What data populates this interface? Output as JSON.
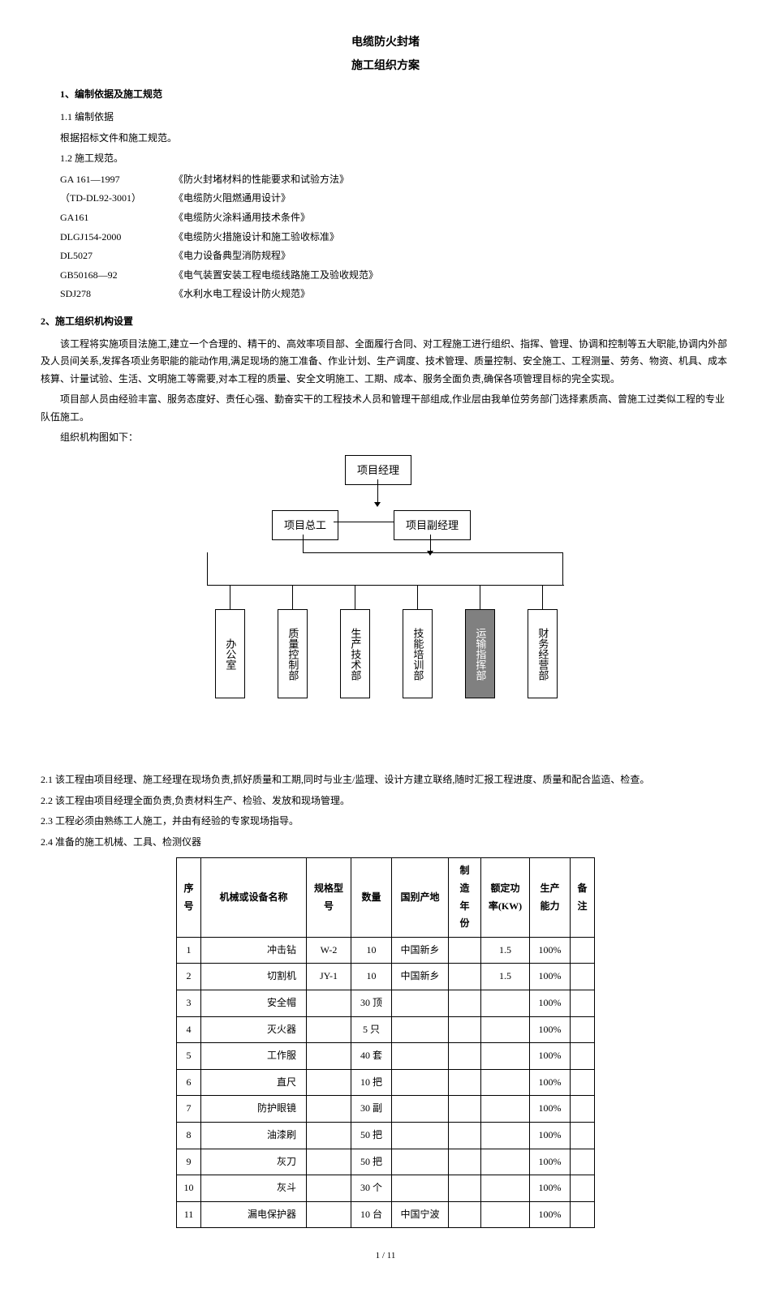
{
  "title_main": "电缆防火封堵",
  "title_sub": "施工组织方案",
  "section1_heading": "1、编制依据及施工规范",
  "section1_1": "1.1 编制依据",
  "section1_1_text": "根据招标文件和施工规范。",
  "section1_2": "1.2 施工规范。",
  "specs": [
    {
      "code": "GA 161—1997",
      "name": "《防火封堵材料的性能要求和试验方法》"
    },
    {
      "code": "（TD-DL92-3001）",
      "name": "《电缆防火阻燃通用设计》"
    },
    {
      "code": "GA161",
      "name": "《电缆防火涂料通用技术条件》"
    },
    {
      "code": "DLGJ154-2000",
      "name": "《电缆防火措施设计和施工验收标准》"
    },
    {
      "code": "DL5027",
      "name": "《电力设备典型消防规程》"
    },
    {
      "code": "GB50168—92",
      "name": "《电气装置安装工程电缆线路施工及验收规范》"
    },
    {
      "code": "SDJ278",
      "name": "《水利水电工程设计防火规范》"
    }
  ],
  "section2_heading": "2、施工组织机构设置",
  "section2_p1": "该工程将实施项目法施工,建立一个合理的、精干的、高效率项目部、全面履行合同、对工程施工进行组织、指挥、管理、协调和控制等五大职能,协调内外部及人员间关系,发挥各项业务职能的能动作用,满足现场的施工准备、作业计划、生产调度、技术管理、质量控制、安全施工、工程测量、劳务、物资、机具、成本核算、计量试验、生活、文明施工等需要,对本工程的质量、安全文明施工、工期、成本、服务全面负责,确保各项管理目标的完全实现。",
  "section2_p2": "项目部人员由经验丰富、服务态度好、责任心强、勤奋实干的工程技术人员和管理干部组成,作业层由我单位劳务部门选择素质高、曾施工过类似工程的专业队伍施工。",
  "section2_p3": "组织机构图如下：",
  "org": {
    "top": "项目经理",
    "l2_left": "项目总工",
    "l2_right": "项目副经理",
    "l3": [
      "办公室",
      "质量控制部",
      "生产技术部",
      "技能培训部",
      "运输指挥部",
      "财务经营部"
    ]
  },
  "section2_1": "2.1 该工程由项目经理、施工经理在现场负责,抓好质量和工期,同时与业主/监理、设计方建立联络,随时汇报工程进度、质量和配合监造、检查。",
  "section2_2": "2.2 该工程由项目经理全面负责,负责材料生产、检验、发放和现场管理。",
  "section2_3": "2.3 工程必须由熟练工人施工，并由有经验的专家现场指导。",
  "section2_4": "2.4 准备的施工机械、工具、检测仪器",
  "table": {
    "headers": {
      "seq": "序号",
      "name": "机械或设备名称",
      "spec": "规格型号",
      "qty": "数量",
      "origin": "国别产地",
      "year": "制造年份",
      "power": "额定功率(KW)",
      "cap": "生产能力",
      "note": "备注"
    },
    "rows": [
      {
        "seq": "1",
        "name": "冲击钻",
        "spec": "W-2",
        "qty": "10",
        "origin": "中国新乡",
        "year": "",
        "power": "1.5",
        "cap": "100%",
        "note": ""
      },
      {
        "seq": "2",
        "name": "切割机",
        "spec": "JY-1",
        "qty": "10",
        "origin": "中国新乡",
        "year": "",
        "power": "1.5",
        "cap": "100%",
        "note": ""
      },
      {
        "seq": "3",
        "name": "安全帽",
        "spec": "",
        "qty": "30 顶",
        "origin": "",
        "year": "",
        "power": "",
        "cap": "100%",
        "note": ""
      },
      {
        "seq": "4",
        "name": "灭火器",
        "spec": "",
        "qty": "5 只",
        "origin": "",
        "year": "",
        "power": "",
        "cap": "100%",
        "note": ""
      },
      {
        "seq": "5",
        "name": "工作服",
        "spec": "",
        "qty": "40 套",
        "origin": "",
        "year": "",
        "power": "",
        "cap": "100%",
        "note": ""
      },
      {
        "seq": "6",
        "name": "直尺",
        "spec": "",
        "qty": "10 把",
        "origin": "",
        "year": "",
        "power": "",
        "cap": "100%",
        "note": ""
      },
      {
        "seq": "7",
        "name": "防护眼镜",
        "spec": "",
        "qty": "30 副",
        "origin": "",
        "year": "",
        "power": "",
        "cap": "100%",
        "note": ""
      },
      {
        "seq": "8",
        "name": "油漆刷",
        "spec": "",
        "qty": "50 把",
        "origin": "",
        "year": "",
        "power": "",
        "cap": "100%",
        "note": ""
      },
      {
        "seq": "9",
        "name": "灰刀",
        "spec": "",
        "qty": "50 把",
        "origin": "",
        "year": "",
        "power": "",
        "cap": "100%",
        "note": ""
      },
      {
        "seq": "10",
        "name": "灰斗",
        "spec": "",
        "qty": "30 个",
        "origin": "",
        "year": "",
        "power": "",
        "cap": "100%",
        "note": ""
      },
      {
        "seq": "11",
        "name": "漏电保护器",
        "spec": "",
        "qty": "10 台",
        "origin": "中国宁波",
        "year": "",
        "power": "",
        "cap": "100%",
        "note": ""
      }
    ]
  },
  "footer": "1 / 11",
  "colors": {
    "text": "#000000",
    "bg": "#ffffff",
    "border": "#000000"
  }
}
